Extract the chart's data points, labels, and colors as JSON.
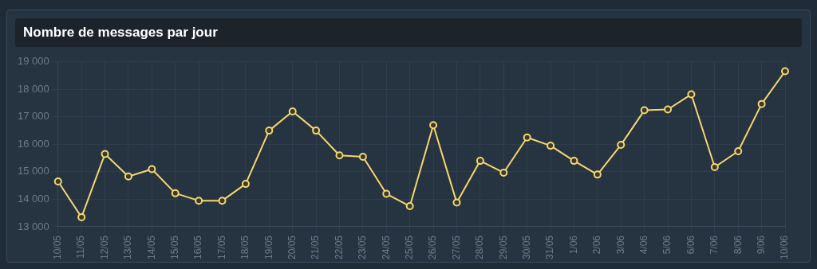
{
  "chart_data": {
    "type": "line",
    "title": "Nombre de messages par jour",
    "categories": [
      "10/05",
      "11/05",
      "12/05",
      "13/05",
      "14/05",
      "15/05",
      "16/05",
      "17/05",
      "18/05",
      "19/05",
      "20/05",
      "21/05",
      "22/05",
      "23/05",
      "24/05",
      "25/05",
      "26/05",
      "27/05",
      "28/05",
      "29/05",
      "30/05",
      "31/05",
      "1/06",
      "2/06",
      "3/06",
      "4/06",
      "5/06",
      "6/06",
      "7/06",
      "8/06",
      "9/06",
      "10/06"
    ],
    "series": [
      {
        "color": "#f5d76e",
        "values": [
          14650,
          13350,
          15650,
          14830,
          15100,
          14220,
          13950,
          13950,
          14560,
          16500,
          17200,
          16500,
          15600,
          15550,
          14200,
          13750,
          16700,
          13880,
          15400,
          14970,
          16250,
          15950,
          15400,
          14900,
          15980,
          17240,
          17270,
          17820,
          15170,
          15750,
          17470,
          18660
        ]
      }
    ],
    "ylim": [
      13000,
      19000
    ],
    "yticks": [
      {
        "value": 13000,
        "label": "13 000"
      },
      {
        "value": 14000,
        "label": "14 000"
      },
      {
        "value": 15000,
        "label": "15 000"
      },
      {
        "value": 16000,
        "label": "16 000"
      },
      {
        "value": 17000,
        "label": "17 000"
      },
      {
        "value": 18000,
        "label": "18 000"
      },
      {
        "value": 19000,
        "label": "19 000"
      }
    ],
    "grid": true,
    "marker": "circle",
    "line_style": "solid"
  }
}
